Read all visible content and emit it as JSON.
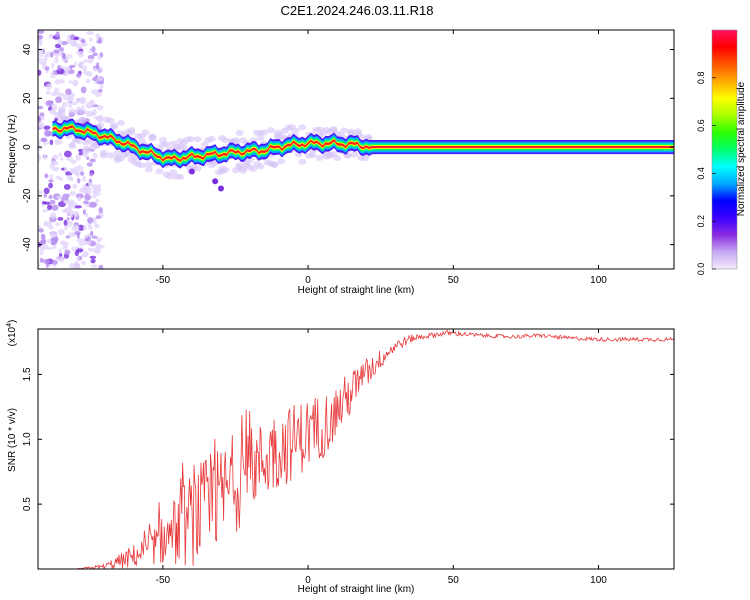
{
  "title": "C2E1.2024.246.03.11.R18",
  "chart_data": [
    {
      "type": "heatmap",
      "xlabel": "Height of straight line (km)",
      "ylabel": "Frequency (Hz)",
      "xlim": [
        -93,
        126
      ],
      "ylim": [
        -50,
        48
      ],
      "xticks": [
        -50,
        0,
        50,
        100
      ],
      "yticks": [
        -40,
        -20,
        0,
        20,
        40
      ],
      "colorbar": {
        "label": "Normalized spectral amplitude",
        "range": [
          0,
          1
        ],
        "ticks": [
          "0.0",
          "0.2",
          "0.4",
          "0.6",
          "0.8"
        ],
        "colors": [
          "#f4ecff",
          "#c6a9f2",
          "#8a2be2",
          "#3a00ff",
          "#0000ff",
          "#00aaff",
          "#00ffff",
          "#00ff6a",
          "#2cff00",
          "#aaff00",
          "#ffff00",
          "#ffaa00",
          "#ff5500",
          "#ff0000",
          "#ff1060"
        ]
      },
      "ridge": [
        {
          "x": -88,
          "y": 7.5,
          "amp": 0.3
        },
        {
          "x": -80,
          "y": 7.5,
          "amp": 0.3
        },
        {
          "x": -72,
          "y": 5,
          "amp": 0.4
        },
        {
          "x": -64,
          "y": 2,
          "amp": 0.45
        },
        {
          "x": -56,
          "y": -2,
          "amp": 0.5
        },
        {
          "x": -48,
          "y": -5,
          "amp": 0.5
        },
        {
          "x": -40,
          "y": -4,
          "amp": 0.55
        },
        {
          "x": -32,
          "y": -3,
          "amp": 0.5
        },
        {
          "x": -24,
          "y": -2,
          "amp": 0.55
        },
        {
          "x": -16,
          "y": -1.5,
          "amp": 0.65
        },
        {
          "x": -8,
          "y": 0.5,
          "amp": 0.75
        },
        {
          "x": 0,
          "y": 1.5,
          "amp": 0.8
        },
        {
          "x": 8,
          "y": 1.5,
          "amp": 0.8
        },
        {
          "x": 16,
          "y": 1,
          "amp": 0.85
        },
        {
          "x": 22,
          "y": 0,
          "amp": 0.9
        },
        {
          "x": 126,
          "y": 0,
          "amp": 0.9
        }
      ]
    },
    {
      "type": "line",
      "xlabel": "Height of straight line (km)",
      "ylabel": "SNR (10 * v/v)",
      "scale_label_base": "(x10",
      "scale_label_exp": "4",
      "scale_label_close": ")",
      "xlim": [
        -93,
        126
      ],
      "ylim": [
        0,
        1.85
      ],
      "xticks": [
        -50,
        0,
        50,
        100
      ],
      "yticks": [
        "0.5",
        "1.0",
        "1.5"
      ],
      "color": "#e8393b",
      "x": [
        -93,
        -80,
        -70,
        -62,
        -55,
        -48,
        -42,
        -36,
        -30,
        -24,
        -18,
        -12,
        -6,
        0,
        6,
        12,
        18,
        24,
        30,
        36,
        42,
        48,
        60,
        70,
        80,
        90,
        100,
        110,
        120,
        126
      ],
      "y": [
        0.0,
        0.0,
        0.02,
        0.08,
        0.15,
        0.25,
        0.35,
        0.45,
        0.55,
        0.7,
        0.8,
        0.9,
        0.97,
        1.05,
        1.12,
        1.28,
        1.45,
        1.6,
        1.72,
        1.78,
        1.8,
        1.82,
        1.8,
        1.79,
        1.8,
        1.78,
        1.77,
        1.77,
        1.77,
        1.77
      ],
      "spread": [
        0,
        0,
        0.02,
        0.08,
        0.12,
        0.22,
        0.35,
        0.4,
        0.4,
        0.4,
        0.3,
        0.32,
        0.3,
        0.28,
        0.25,
        0.2,
        0.15,
        0.08,
        0.05,
        0.03,
        0.02,
        0.02,
        0.015,
        0.015,
        0.015,
        0.015,
        0.015,
        0.015,
        0.015,
        0.015
      ]
    }
  ]
}
